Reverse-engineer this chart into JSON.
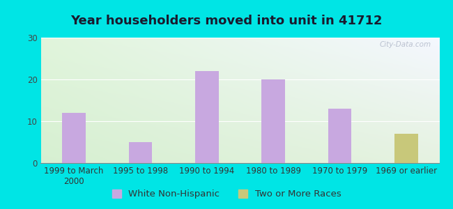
{
  "title": "Year householders moved into unit in 41712",
  "categories": [
    "1999 to March\n2000",
    "1995 to 1998",
    "1990 to 1994",
    "1980 to 1989",
    "1970 to 1979",
    "1969 or earlier"
  ],
  "white_non_hispanic": [
    12,
    5,
    22,
    20,
    13,
    0
  ],
  "two_or_more_races": [
    0,
    0,
    0,
    0,
    0,
    7
  ],
  "bar_color_white": "#c8a8e0",
  "bar_color_two": "#c8c87a",
  "ylim": [
    0,
    30
  ],
  "yticks": [
    0,
    10,
    20,
    30
  ],
  "background_outer": "#00e5e5",
  "title_fontsize": 13,
  "tick_fontsize": 8.5,
  "legend_fontsize": 9.5,
  "watermark": "City-Data.com"
}
